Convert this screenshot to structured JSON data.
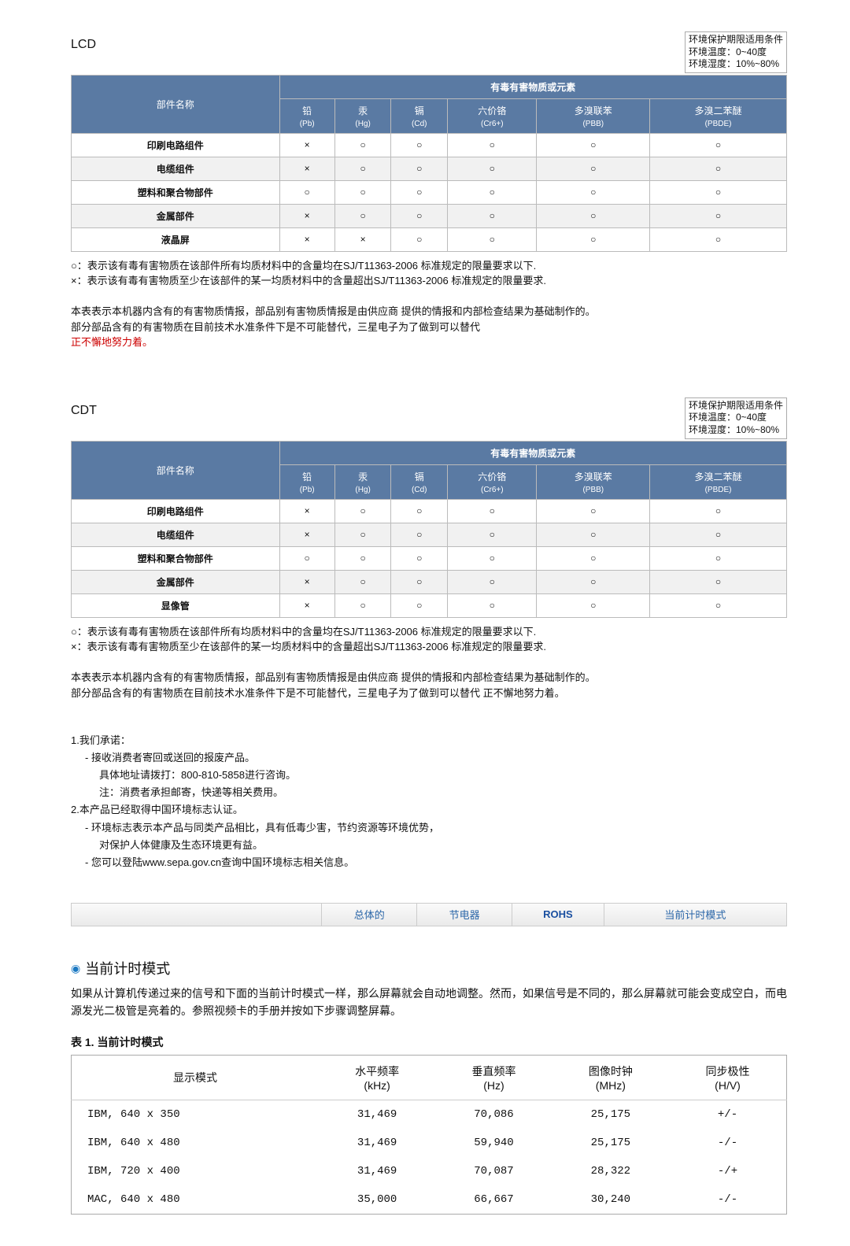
{
  "env": {
    "line1": "环境保护期限适用条件",
    "line2": "环境温度：0~40度",
    "line3": "环境湿度：10%~80%"
  },
  "tables": {
    "header_top": "有毒有害物质或元素",
    "col_part": "部件名称",
    "cols": [
      {
        "top": "铅",
        "sub": "(Pb)"
      },
      {
        "top": "汞",
        "sub": "(Hg)"
      },
      {
        "top": "镉",
        "sub": "(Cd)"
      },
      {
        "top": "六价铬",
        "sub": "(Cr6+)"
      },
      {
        "top": "多溴联苯",
        "sub": "(PBB)"
      },
      {
        "top": "多溴二苯醚",
        "sub": "(PBDE)"
      }
    ]
  },
  "table1": {
    "label": "LCD",
    "rows": [
      {
        "name": "印刷电路组件",
        "v": [
          "×",
          "○",
          "○",
          "○",
          "○",
          "○"
        ]
      },
      {
        "name": "电缆组件",
        "v": [
          "×",
          "○",
          "○",
          "○",
          "○",
          "○"
        ]
      },
      {
        "name": "塑料和聚合物部件",
        "v": [
          "○",
          "○",
          "○",
          "○",
          "○",
          "○"
        ]
      },
      {
        "name": "金属部件",
        "v": [
          "×",
          "○",
          "○",
          "○",
          "○",
          "○"
        ]
      },
      {
        "name": "液晶屏",
        "v": [
          "×",
          "×",
          "○",
          "○",
          "○",
          "○"
        ]
      }
    ]
  },
  "table2": {
    "label": "CDT",
    "rows": [
      {
        "name": "印刷电路组件",
        "v": [
          "×",
          "○",
          "○",
          "○",
          "○",
          "○"
        ]
      },
      {
        "name": "电缆组件",
        "v": [
          "×",
          "○",
          "○",
          "○",
          "○",
          "○"
        ]
      },
      {
        "name": "塑料和聚合物部件",
        "v": [
          "○",
          "○",
          "○",
          "○",
          "○",
          "○"
        ]
      },
      {
        "name": "金属部件",
        "v": [
          "×",
          "○",
          "○",
          "○",
          "○",
          "○"
        ]
      },
      {
        "name": "显像管",
        "v": [
          "×",
          "○",
          "○",
          "○",
          "○",
          "○"
        ]
      }
    ]
  },
  "notes": {
    "n1": "○：表示该有毒有害物质在该部件所有均质材料中的含量均在SJ/T11363-2006 标准规定的限量要求以下.",
    "n2": "×：表示该有毒有害物质至少在该部件的某一均质材料中的含量超出SJ/T11363-2006 标准规定的限量要求.",
    "n3a": "本表表示本机器内含有的有害物质情报，部品别有害物质情报是由供应商 提供的情报和内部检查结果为基础制作的。",
    "n3b": "部分部品含有的有害物质在目前技术水准条件下是不可能替代，三星电子为了做到可以替代",
    "n3c": "正不懈地努力着。",
    "n3b2": "部分部品含有的有害物质在目前技术水准条件下是不可能替代，三星电子为了做到可以替代 正不懈地努力着。"
  },
  "commit": {
    "l1": "1.我们承诺：",
    "l2": "- 接收消费者寄回或送回的报废产品。",
    "l3": "具体地址请拨打：800-810-5858进行咨询。",
    "l4": "注：消费者承担邮寄，快递等相关费用。",
    "l5": "2.本产品已经取得中国环境标志认证。",
    "l6": "- 环境标志表示本产品与同类产品相比，具有低毒少害，节约资源等环境优势，",
    "l7": "对保护人体健康及生态环境更有益。",
    "l8": "- 您可以登陆www.sepa.gov.cn查询中国环境标志相关信息。"
  },
  "nav": {
    "a": "总体的",
    "b": "节电器",
    "c": "ROHS",
    "d": "当前计时模式"
  },
  "timing": {
    "heading": "当前计时模式",
    "para": "如果从计算机传递过来的信号和下面的当前计时模式一样，那么屏幕就会自动地调整。然而，如果信号是不同的，那么屏幕就可能会变成空白，而电源发光二极管是亮着的。参照视频卡的手册并按如下步骤调整屏幕。",
    "caption": "表 1.  当前计时模式",
    "headers": {
      "mode": "显示模式",
      "h": "水平频率",
      "h_u": "(kHz)",
      "v": "垂直频率",
      "v_u": "(Hz)",
      "pix": "图像时钟",
      "pix_u": "(MHz)",
      "sync": "同步极性",
      "sync_u": "(H/V)"
    },
    "rows": [
      {
        "m": "IBM, 640 x 350",
        "h": "31,469",
        "v": "70,086",
        "p": "25,175",
        "s": "+/-"
      },
      {
        "m": "IBM, 640 x 480",
        "h": "31,469",
        "v": "59,940",
        "p": "25,175",
        "s": "-/-"
      },
      {
        "m": "IBM, 720 x 400",
        "h": "31,469",
        "v": "70,087",
        "p": "28,322",
        "s": "-/+"
      },
      {
        "m": "MAC, 640 x 480",
        "h": "35,000",
        "v": "66,667",
        "p": "30,240",
        "s": "-/-"
      }
    ]
  }
}
